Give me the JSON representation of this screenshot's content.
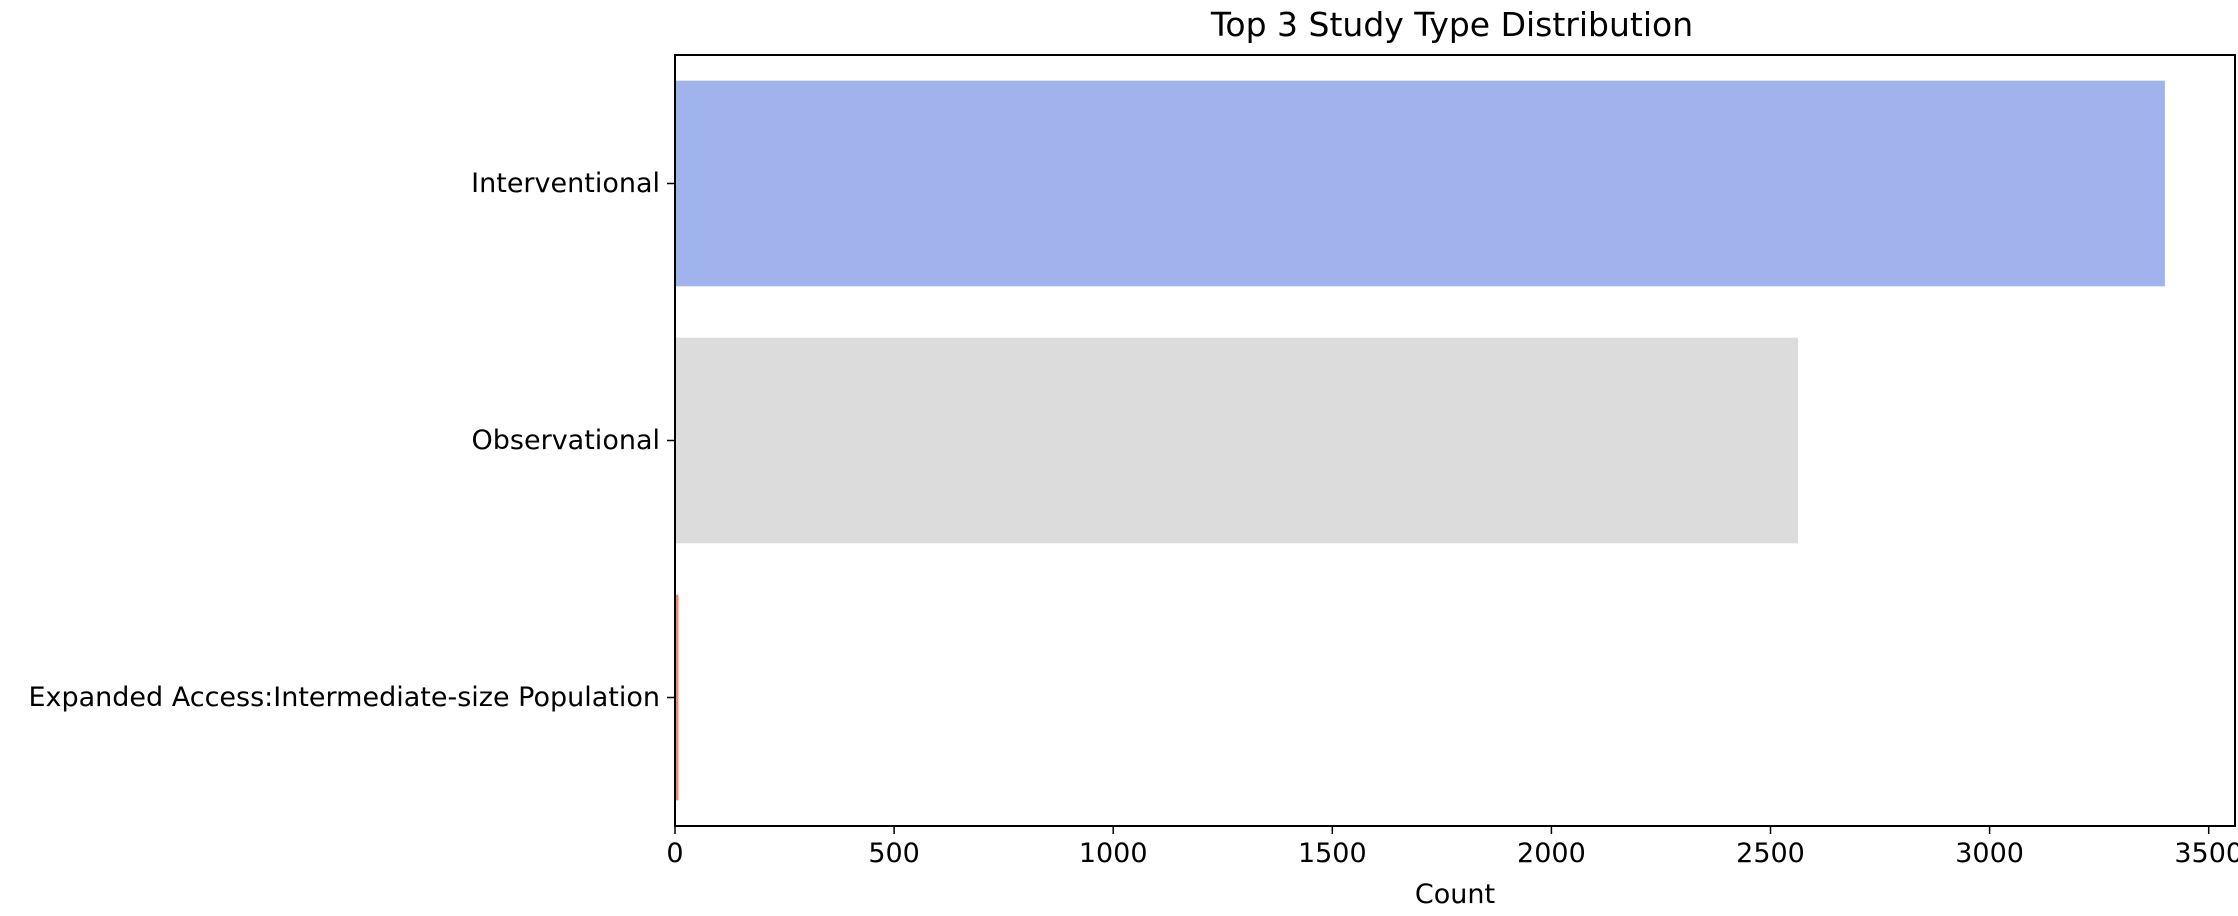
{
  "chart_data": {
    "type": "bar",
    "orientation": "horizontal",
    "title": "Top 3 Study Type Distribution",
    "xlabel": "Count",
    "ylabel": "",
    "categories": [
      "Interventional",
      "Observational",
      "Expanded Access:Intermediate-size Population"
    ],
    "values": [
      3400,
      2563,
      8
    ],
    "colors": [
      "#a1b3ec",
      "#dcdcdc",
      "#f08a6a"
    ],
    "xlim": [
      0,
      3560
    ],
    "xticks": [
      0,
      500,
      1000,
      1500,
      2000,
      2500,
      3000,
      3500
    ],
    "xtick_labels": [
      "0",
      "500",
      "1000",
      "1500",
      "2000",
      "2500",
      "3000",
      "3500"
    ],
    "grid": false,
    "legend": "none"
  }
}
